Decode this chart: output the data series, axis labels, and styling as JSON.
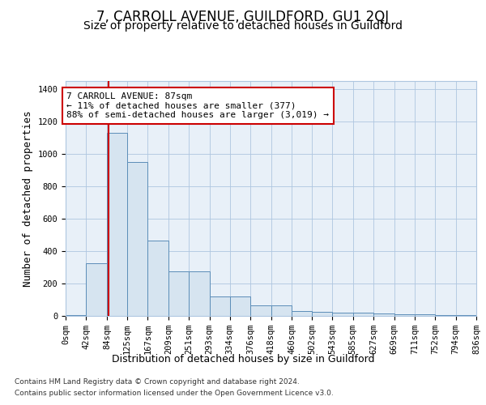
{
  "title": "7, CARROLL AVENUE, GUILDFORD, GU1 2QJ",
  "subtitle": "Size of property relative to detached houses in Guildford",
  "xlabel": "Distribution of detached houses by size in Guildford",
  "ylabel": "Number of detached properties",
  "footer_line1": "Contains HM Land Registry data © Crown copyright and database right 2024.",
  "footer_line2": "Contains public sector information licensed under the Open Government Licence v3.0.",
  "bin_edges": [
    0,
    42,
    84,
    125,
    167,
    209,
    251,
    293,
    334,
    376,
    418,
    460,
    502,
    543,
    585,
    627,
    669,
    711,
    752,
    794,
    836
  ],
  "bin_labels": [
    "0sqm",
    "42sqm",
    "84sqm",
    "125sqm",
    "167sqm",
    "209sqm",
    "251sqm",
    "293sqm",
    "334sqm",
    "376sqm",
    "418sqm",
    "460sqm",
    "502sqm",
    "543sqm",
    "585sqm",
    "627sqm",
    "669sqm",
    "711sqm",
    "752sqm",
    "794sqm",
    "836sqm"
  ],
  "bar_heights": [
    5,
    325,
    1130,
    950,
    465,
    275,
    275,
    120,
    120,
    65,
    65,
    30,
    25,
    20,
    20,
    15,
    10,
    10,
    5,
    5
  ],
  "bar_color": "#d6e4f0",
  "bar_edge_color": "#5b8db8",
  "property_size": 87,
  "property_line_color": "#cc0000",
  "annotation_text": "7 CARROLL AVENUE: 87sqm\n← 11% of detached houses are smaller (377)\n88% of semi-detached houses are larger (3,019) →",
  "annotation_box_color": "white",
  "annotation_box_edge": "#cc0000",
  "ylim": [
    0,
    1450
  ],
  "plot_bg_color": "#e8f0f8",
  "title_fontsize": 12,
  "subtitle_fontsize": 10,
  "axis_label_fontsize": 9,
  "tick_fontsize": 7.5,
  "annotation_fontsize": 8
}
